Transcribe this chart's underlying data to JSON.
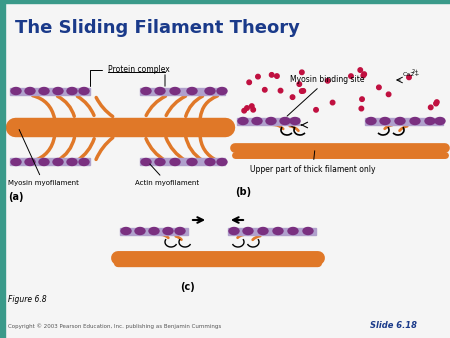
{
  "title": "The Sliding Filament Theory",
  "title_color": "#1a3a8a",
  "title_fontsize": 13,
  "background_color": "#f5f5f5",
  "header_bar_color": "#3a9a8a",
  "orange_color": "#e07828",
  "purple_color": "#7a3080",
  "lavender_color": "#b0a0cc",
  "red_dot_color": "#c01040",
  "dark_text": "#000000",
  "label_a": "(a)",
  "label_b": "(b)",
  "label_c": "(c)",
  "myosin_label": "Myosin myofilament",
  "actin_label": "Actin myofilament",
  "protein_label": "Protein complex",
  "myosin_binding_label": "Myosin binding site",
  "upper_thick_label": "Upper part of thick filament only",
  "ca_label": "Ca2+",
  "figure_label": "Figure 6.8",
  "copyright": "Copyright © 2003 Pearson Education, Inc. publishing as Benjamin Cummings",
  "slide_label": "Slide 6.18"
}
